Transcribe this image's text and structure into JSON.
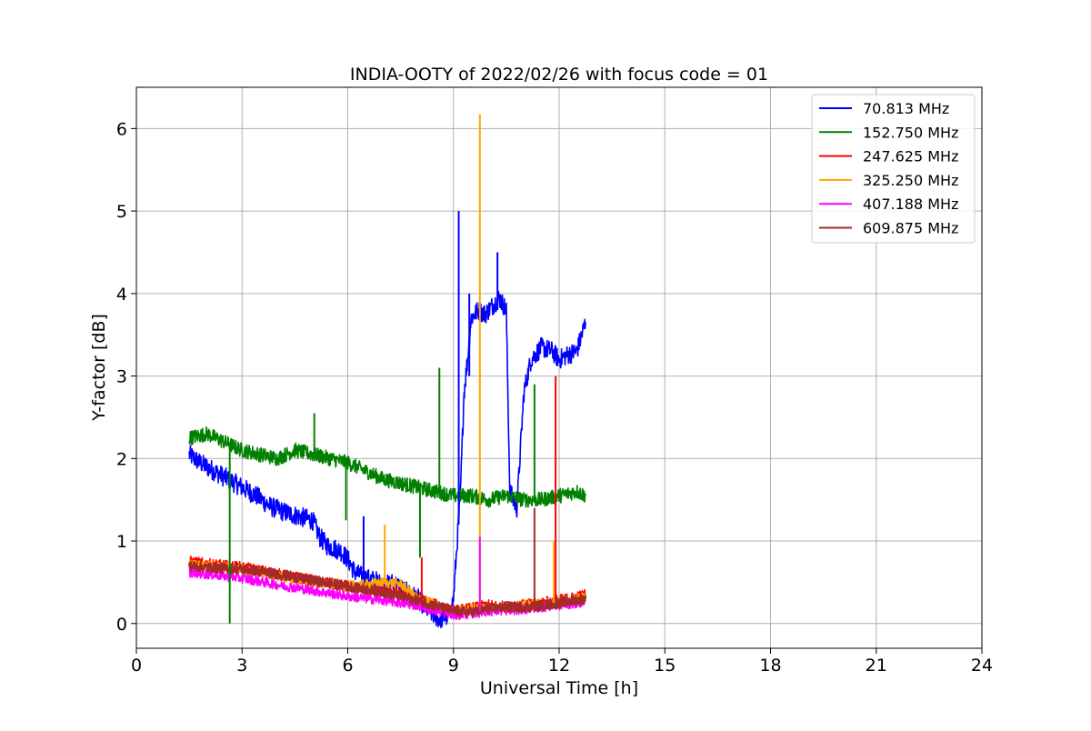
{
  "chart_data": {
    "type": "line",
    "title": "INDIA-OOTY of 2022/02/26 with focus code = 01",
    "xlabel": "Universal Time [h]",
    "ylabel": "Y-factor [dB]",
    "xlim": [
      0,
      24
    ],
    "ylim": [
      -0.3,
      6.5
    ],
    "xticks": [
      0,
      3,
      6,
      9,
      12,
      15,
      18,
      21,
      24
    ],
    "yticks": [
      0,
      1,
      2,
      3,
      4,
      5,
      6
    ],
    "grid": true,
    "legend_position": "top-right",
    "series": [
      {
        "name": " 70.813 MHz",
        "color": "#0000ff",
        "x": [
          1.5,
          1.8,
          2.2,
          2.6,
          3.0,
          3.4,
          3.8,
          4.2,
          4.6,
          5.0,
          5.2,
          5.4,
          5.8,
          6.0,
          6.2,
          6.5,
          6.8,
          7.0,
          7.3,
          7.6,
          8.0,
          8.3,
          8.6,
          8.9,
          9.0,
          9.2,
          9.3,
          9.4,
          9.5,
          9.7,
          9.9,
          10.1,
          10.3,
          10.5,
          10.6,
          10.8,
          11.0,
          11.2,
          11.5,
          11.8,
          12.0,
          12.2,
          12.5,
          12.75
        ],
        "y": [
          2.05,
          1.95,
          1.85,
          1.75,
          1.65,
          1.55,
          1.42,
          1.35,
          1.3,
          1.25,
          1.05,
          0.95,
          0.88,
          0.78,
          0.62,
          0.55,
          0.52,
          0.45,
          0.5,
          0.4,
          0.3,
          0.15,
          0.05,
          0.1,
          0.3,
          1.6,
          2.8,
          3.2,
          3.7,
          3.8,
          3.75,
          3.85,
          3.95,
          3.8,
          1.6,
          1.4,
          2.8,
          3.2,
          3.35,
          3.3,
          3.2,
          3.25,
          3.3,
          3.65
        ]
      },
      {
        "name": "152.750 MHz",
        "color": "#008000",
        "x": [
          1.5,
          2.0,
          2.5,
          3.0,
          3.5,
          4.0,
          4.5,
          5.0,
          5.5,
          6.0,
          6.5,
          7.0,
          7.5,
          8.0,
          8.5,
          9.0,
          9.5,
          10.0,
          10.5,
          11.0,
          11.5,
          12.0,
          12.5,
          12.75
        ],
        "y": [
          2.25,
          2.3,
          2.2,
          2.1,
          2.05,
          2.0,
          2.1,
          2.05,
          2.0,
          1.95,
          1.85,
          1.75,
          1.7,
          1.65,
          1.6,
          1.55,
          1.55,
          1.5,
          1.55,
          1.5,
          1.5,
          1.55,
          1.6,
          1.55
        ]
      },
      {
        "name": "247.625 MHz",
        "color": "#ff0000",
        "x": [
          1.5,
          2.0,
          3.0,
          4.0,
          5.0,
          6.0,
          7.0,
          8.0,
          9.0,
          9.5,
          10.0,
          10.5,
          11.0,
          11.5,
          12.0,
          12.5,
          12.75
        ],
        "y": [
          0.75,
          0.72,
          0.68,
          0.6,
          0.52,
          0.45,
          0.4,
          0.3,
          0.15,
          0.18,
          0.22,
          0.2,
          0.22,
          0.25,
          0.28,
          0.32,
          0.35
        ]
      },
      {
        "name": "325.250 MHz",
        "color": "#ffa500",
        "x": [
          1.5,
          2.0,
          3.0,
          4.0,
          5.0,
          6.0,
          7.0,
          7.5,
          8.0,
          9.0,
          9.5,
          10.0,
          10.5,
          11.0,
          11.5,
          12.0,
          12.5,
          12.75
        ],
        "y": [
          0.72,
          0.7,
          0.66,
          0.58,
          0.5,
          0.45,
          0.5,
          0.48,
          0.3,
          0.15,
          0.18,
          0.2,
          0.2,
          0.22,
          0.24,
          0.26,
          0.3,
          0.32
        ]
      },
      {
        "name": "407.188 MHz",
        "color": "#ff00ff",
        "x": [
          1.5,
          2.0,
          3.0,
          4.0,
          5.0,
          6.0,
          7.0,
          8.0,
          9.0,
          9.5,
          10.0,
          10.5,
          11.0,
          11.5,
          12.0,
          12.5,
          12.75
        ],
        "y": [
          0.62,
          0.6,
          0.55,
          0.47,
          0.4,
          0.33,
          0.28,
          0.22,
          0.1,
          0.12,
          0.15,
          0.16,
          0.17,
          0.2,
          0.22,
          0.25,
          0.27
        ]
      },
      {
        "name": "609.875 MHz",
        "color": "#a52a2a",
        "x": [
          1.5,
          2.0,
          3.0,
          4.0,
          5.0,
          6.0,
          7.0,
          8.0,
          9.0,
          9.5,
          10.0,
          10.5,
          11.0,
          11.5,
          12.0,
          12.5,
          12.75
        ],
        "y": [
          0.7,
          0.68,
          0.66,
          0.6,
          0.52,
          0.45,
          0.38,
          0.28,
          0.15,
          0.14,
          0.18,
          0.2,
          0.2,
          0.22,
          0.25,
          0.28,
          0.3
        ]
      }
    ],
    "spikes": [
      {
        "series": 1,
        "x": 2.65,
        "y_from": 2.2,
        "y_to": 0.0
      },
      {
        "series": 1,
        "x": 5.05,
        "y_from": 2.05,
        "y_to": 2.55
      },
      {
        "series": 1,
        "x": 5.95,
        "y_from": 1.95,
        "y_to": 1.25
      },
      {
        "series": 1,
        "x": 8.05,
        "y_from": 1.65,
        "y_to": 0.8
      },
      {
        "series": 1,
        "x": 8.6,
        "y_from": 1.6,
        "y_to": 3.1
      },
      {
        "series": 1,
        "x": 11.3,
        "y_from": 1.5,
        "y_to": 2.9
      },
      {
        "series": 0,
        "x": 9.15,
        "y_from": 1.2,
        "y_to": 5.0
      },
      {
        "series": 0,
        "x": 9.45,
        "y_from": 3.0,
        "y_to": 4.0
      },
      {
        "series": 0,
        "x": 10.25,
        "y_from": 3.8,
        "y_to": 4.5
      },
      {
        "series": 0,
        "x": 6.45,
        "y_from": 0.55,
        "y_to": 1.3
      },
      {
        "series": 3,
        "x": 9.75,
        "y_from": 0.2,
        "y_to": 6.17
      },
      {
        "series": 3,
        "x": 7.05,
        "y_from": 0.5,
        "y_to": 1.2
      },
      {
        "series": 3,
        "x": 11.85,
        "y_from": 0.25,
        "y_to": 1.0
      },
      {
        "series": 2,
        "x": 11.9,
        "y_from": 0.3,
        "y_to": 3.0
      },
      {
        "series": 2,
        "x": 8.1,
        "y_from": 0.3,
        "y_to": 0.8
      },
      {
        "series": 5,
        "x": 11.3,
        "y_from": 0.25,
        "y_to": 1.4
      },
      {
        "series": 4,
        "x": 9.75,
        "y_from": 0.15,
        "y_to": 1.05
      }
    ]
  }
}
